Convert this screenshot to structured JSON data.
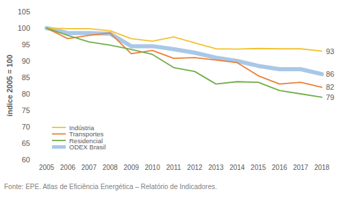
{
  "chart_data": {
    "type": "line",
    "y_label": "índice 2005 = 100",
    "source": "Fonte: EPE. Atlas de Eficiência Energética – Relatório de Indicadores.",
    "categories": [
      "2005",
      "2006",
      "2007",
      "2008",
      "2009",
      "2010",
      "2011",
      "2012",
      "2013",
      "2014",
      "2015",
      "2016",
      "2017",
      "2018"
    ],
    "series": [
      {
        "name": "Indústria",
        "color": "#f2c12e",
        "line_style": "solid",
        "values": [
          100,
          99.8,
          99.8,
          99.2,
          96.8,
          96,
          97.3,
          95.5,
          93.7,
          93.6,
          93.8,
          93.7,
          93.7,
          93
        ],
        "value_labels": [
          null,
          null,
          null,
          null,
          null,
          null,
          null,
          null,
          null,
          null,
          null,
          null,
          null,
          "93"
        ]
      },
      {
        "name": "Transportes",
        "color": "#ed7d31",
        "line_style": "solid",
        "values": [
          100,
          96.8,
          97.8,
          98.5,
          92.2,
          93.2,
          90.8,
          91,
          90.3,
          89.5,
          85.5,
          83,
          83.5,
          82
        ],
        "value_labels": [
          null,
          null,
          null,
          null,
          null,
          null,
          null,
          null,
          null,
          null,
          null,
          null,
          null,
          "82"
        ]
      },
      {
        "name": "Residencial",
        "color": "#70ad47",
        "line_style": "solid",
        "values": [
          100,
          97.8,
          95.8,
          94.8,
          93.5,
          92,
          88,
          86.8,
          83,
          83.7,
          83.5,
          81,
          80,
          79
        ],
        "value_labels": [
          null,
          null,
          null,
          null,
          null,
          null,
          null,
          null,
          null,
          null,
          null,
          null,
          null,
          "79"
        ]
      },
      {
        "name": "ODEX Brasil",
        "color": "#a9c8e8",
        "line_style": "thick",
        "values": [
          100,
          98.5,
          98.5,
          98.3,
          94.5,
          94.5,
          93.6,
          92.5,
          91,
          90,
          88.5,
          87.5,
          87.5,
          86
        ],
        "value_labels": [
          null,
          null,
          null,
          null,
          null,
          null,
          null,
          null,
          null,
          null,
          null,
          null,
          null,
          "86"
        ]
      }
    ],
    "ylim": [
      60,
      105
    ],
    "yticks": [
      60,
      65,
      70,
      75,
      80,
      85,
      90,
      95,
      100,
      105
    ],
    "grid": false,
    "legend": "lower left"
  }
}
